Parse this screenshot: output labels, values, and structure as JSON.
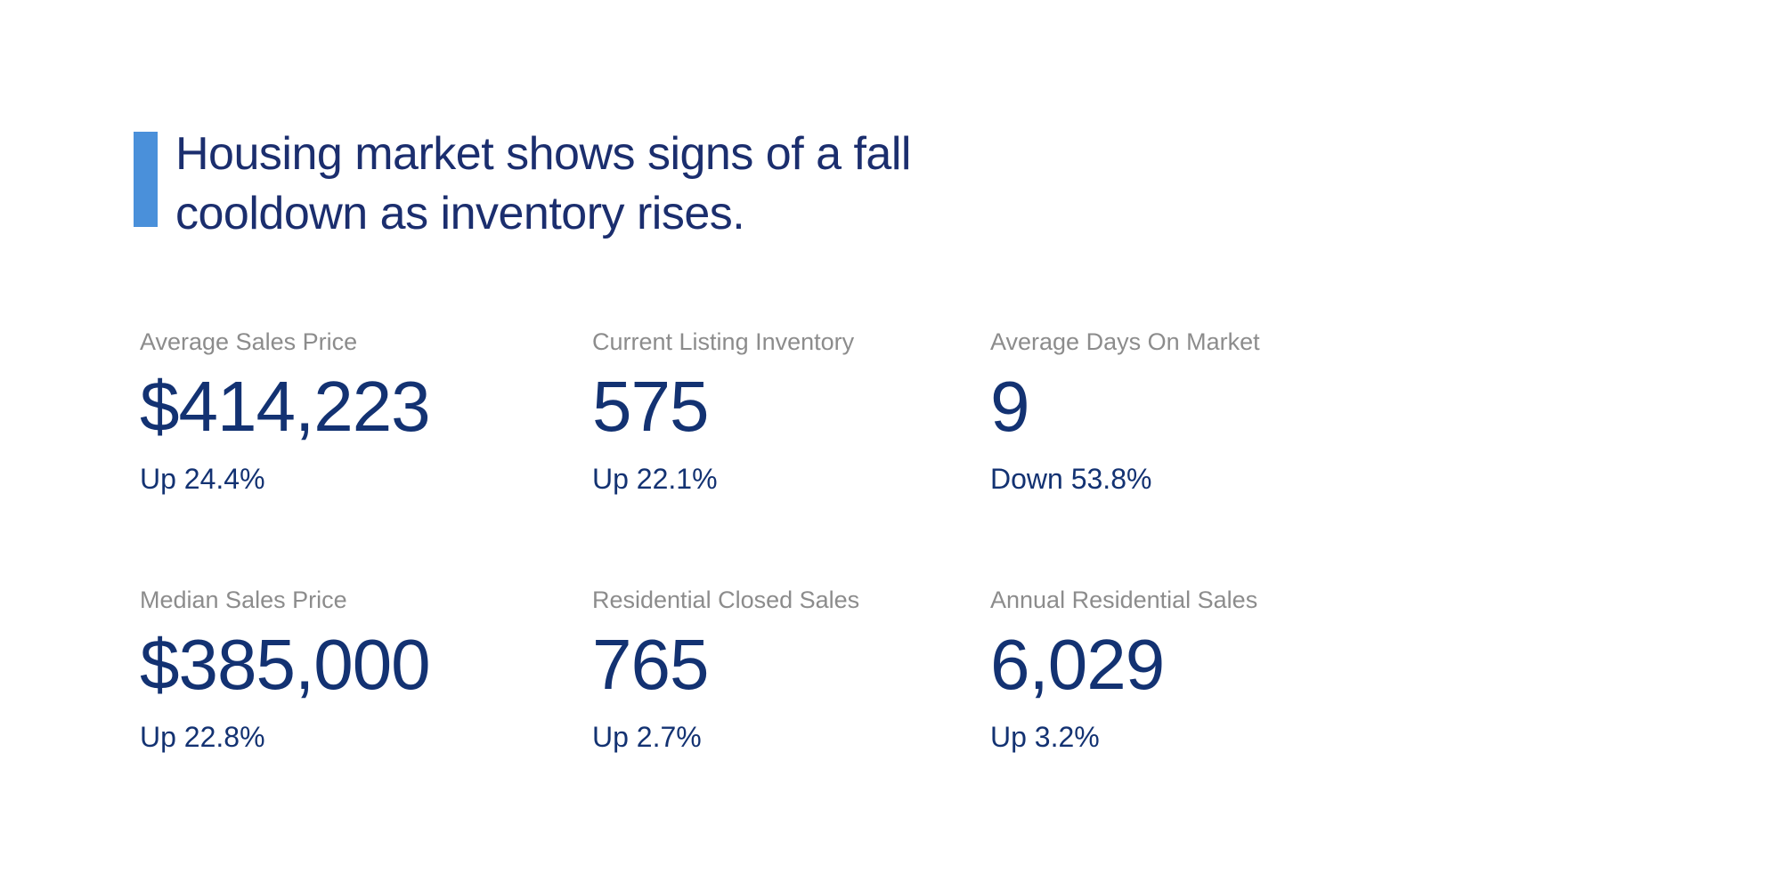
{
  "colors": {
    "accent": "#4a90da",
    "navy_headline": "#1b2e6e",
    "navy_value": "#133272",
    "gray_label": "#8c8c8c",
    "background": "#ffffff"
  },
  "headline": {
    "text": "Housing market shows signs of a fall cooldown as inventory rises."
  },
  "stats": [
    {
      "label": "Average Sales Price",
      "value": "$414,223",
      "change": "Up 24.4%",
      "direction": "up"
    },
    {
      "label": "Current Listing Inventory",
      "value": "575",
      "change": "Up 22.1%",
      "direction": "up"
    },
    {
      "label": "Average Days On Market",
      "value": "9",
      "change": "Down 53.8%",
      "direction": "down"
    },
    {
      "label": "Median Sales Price",
      "value": "$385,000",
      "change": "Up 22.8%",
      "direction": "up"
    },
    {
      "label": "Residential Closed Sales",
      "value": "765",
      "change": "Up 2.7%",
      "direction": "up"
    },
    {
      "label": "Annual Residential Sales",
      "value": "6,029",
      "change": "Up 3.2%",
      "direction": "up"
    }
  ]
}
